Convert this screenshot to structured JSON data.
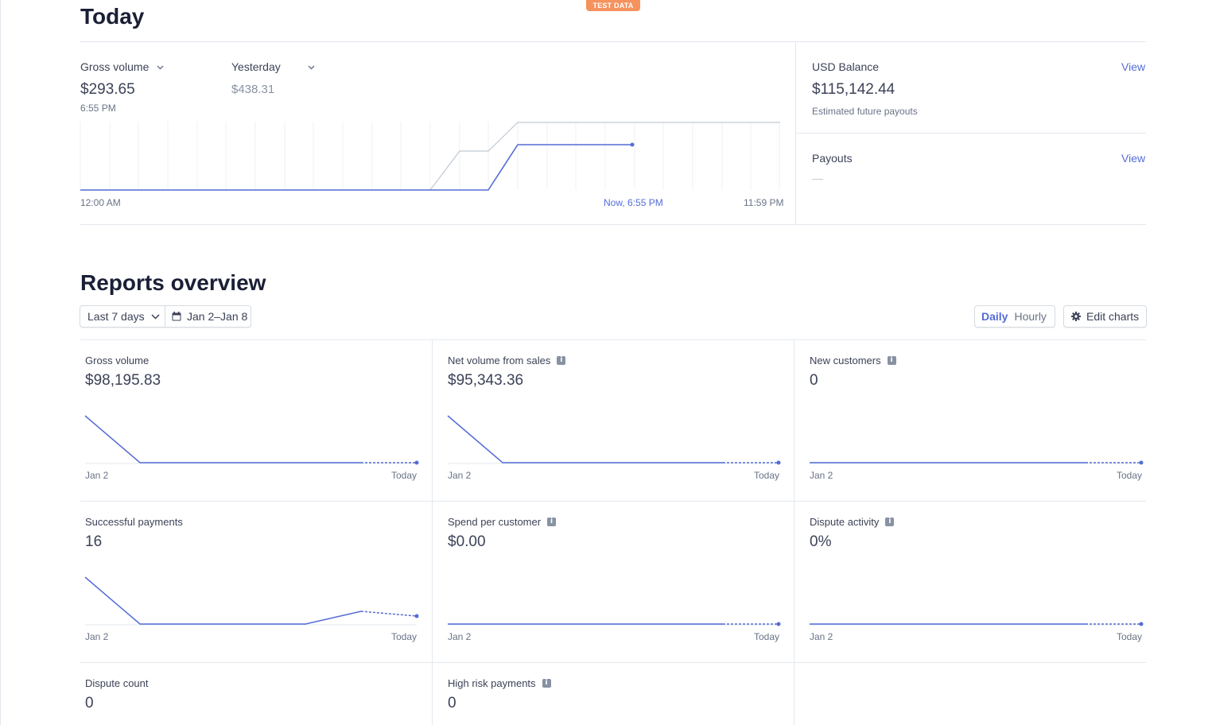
{
  "badge": "TEST DATA",
  "today": {
    "title": "Today",
    "gross_label": "Gross volume",
    "gross_value": "$293.65",
    "gross_time": "6:55 PM",
    "compare_label": "Yesterday",
    "compare_value": "$438.31",
    "axis": {
      "start": "12:00 AM",
      "now": "Now, 6:55 PM",
      "end": "11:59 PM"
    },
    "balance": {
      "label": "USD Balance",
      "link": "View",
      "value": "$115,142.44",
      "note": "Estimated future payouts"
    },
    "payouts": {
      "label": "Payouts",
      "link": "View",
      "value": "—"
    }
  },
  "reports": {
    "title": "Reports overview",
    "range_select": "Last 7 days",
    "date_range": "Jan 2–Jan 8",
    "toggle": {
      "daily": "Daily",
      "hourly": "Hourly"
    },
    "edit_label": "Edit charts",
    "tiles": [
      {
        "title": "Gross volume",
        "value": "$98,195.83",
        "start": "Jan 2",
        "end": "Today",
        "info": false
      },
      {
        "title": "Net volume from sales",
        "value": "$95,343.36",
        "start": "Jan 2",
        "end": "Today",
        "info": true
      },
      {
        "title": "New customers",
        "value": "0",
        "start": "Jan 2",
        "end": "Today",
        "info": true
      },
      {
        "title": "Successful payments",
        "value": "16",
        "start": "Jan 2",
        "end": "Today",
        "info": false
      },
      {
        "title": "Spend per customer",
        "value": "$0.00",
        "start": "Jan 2",
        "end": "Today",
        "info": true
      },
      {
        "title": "Dispute activity",
        "value": "0%",
        "start": "Jan 2",
        "end": "Today",
        "info": true
      },
      {
        "title": "Dispute count",
        "value": "0",
        "info": false
      },
      {
        "title": "High risk payments",
        "value": "0",
        "info": true
      }
    ]
  },
  "colors": {
    "accent": "#556cd6",
    "badge": "#f5925e",
    "grid": "#e3e8ee"
  }
}
